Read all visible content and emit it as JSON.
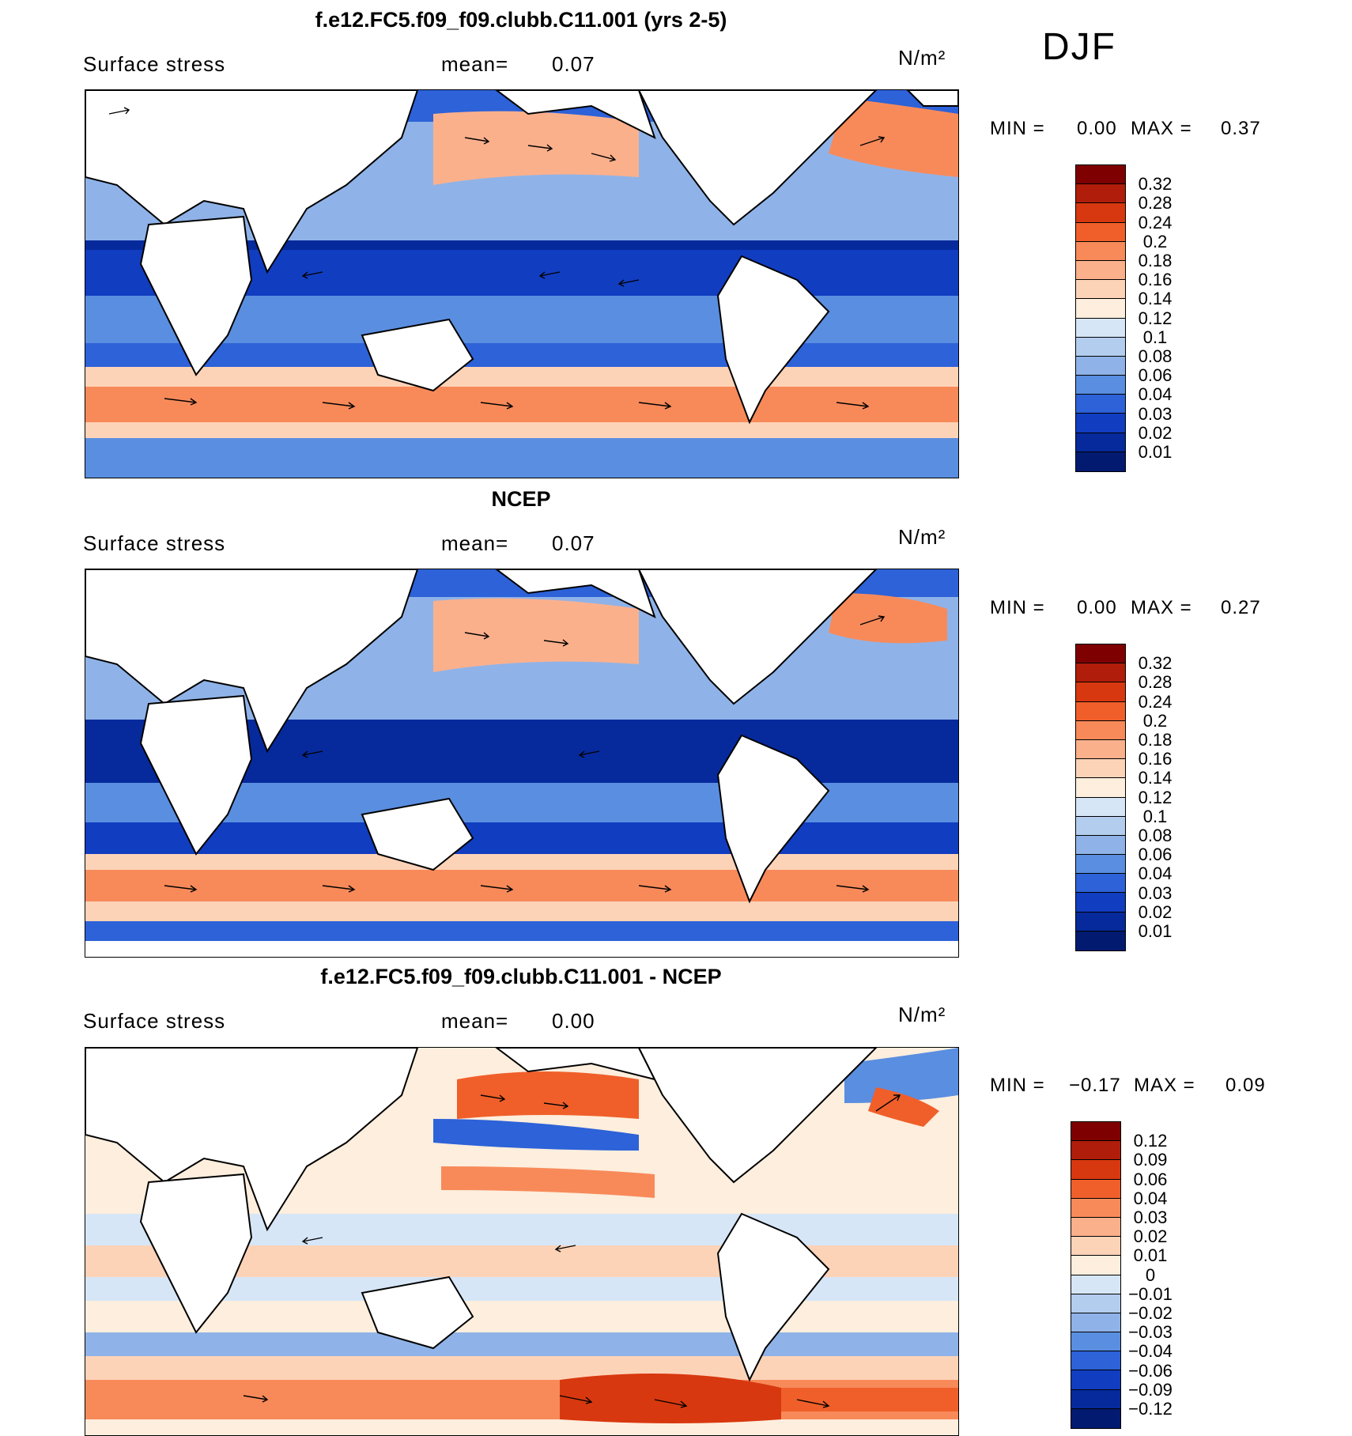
{
  "season": "DJF",
  "panels": [
    {
      "title": "f.e12.FC5.f09_f09.clubb.C11.001 (yrs 2-5)",
      "field": "Surface stress",
      "mean_label": "mean=",
      "mean_value": "0.07",
      "units": "N/m²",
      "min_label": "MIN =",
      "min_value": "0.00",
      "max_label": "MAX =",
      "max_value": "0.37",
      "colorbar_labels": [
        "0.32",
        "0.28",
        "0.24",
        "0.2",
        "0.18",
        "0.16",
        "0.14",
        "0.12",
        "0.1",
        "0.08",
        "0.06",
        "0.04",
        "0.03",
        "0.02",
        "0.01"
      ]
    },
    {
      "title": "NCEP",
      "field": "Surface stress",
      "mean_label": "mean=",
      "mean_value": "0.07",
      "units": "N/m²",
      "min_label": "MIN =",
      "min_value": "0.00",
      "max_label": "MAX =",
      "max_value": "0.27",
      "colorbar_labels": [
        "0.32",
        "0.28",
        "0.24",
        "0.2",
        "0.18",
        "0.16",
        "0.14",
        "0.12",
        "0.1",
        "0.08",
        "0.06",
        "0.04",
        "0.03",
        "0.02",
        "0.01"
      ]
    },
    {
      "title": "f.e12.FC5.f09_f09.clubb.C11.001 - NCEP",
      "field": "Surface stress",
      "mean_label": "mean=",
      "mean_value": "0.00",
      "units": "N/m²",
      "min_label": "MIN =",
      "min_value": "−0.17",
      "max_label": "MAX =",
      "max_value": "0.09",
      "colorbar_labels": [
        "0.12",
        "0.09",
        "0.06",
        "0.04",
        "0.03",
        "0.02",
        "0.01",
        "0",
        "−0.01",
        "−0.02",
        "−0.03",
        "−0.04",
        "−0.06",
        "−0.09",
        "−0.12"
      ]
    }
  ],
  "colors": {
    "mean_field_scale": [
      "#7f0000",
      "#b01d0a",
      "#d8380f",
      "#f05f2a",
      "#f88a5a",
      "#fbb08c",
      "#fdd3b8",
      "#fdeedd",
      "#d6e6f7",
      "#b3cdef",
      "#8fb3e8",
      "#5a8ee0",
      "#2d62d8",
      "#113dc0",
      "#062a9c",
      "#021a70"
    ],
    "diff_scale": [
      "#7f0000",
      "#b01d0a",
      "#d8380f",
      "#f05f2a",
      "#f88a5a",
      "#fbb08c",
      "#fdd3b8",
      "#fdeedd",
      "#d6e6f7",
      "#b3cdef",
      "#8fb3e8",
      "#5a8ee0",
      "#2d62d8",
      "#113dc0",
      "#062a9c",
      "#021a70"
    ],
    "land": "#ffffff"
  }
}
